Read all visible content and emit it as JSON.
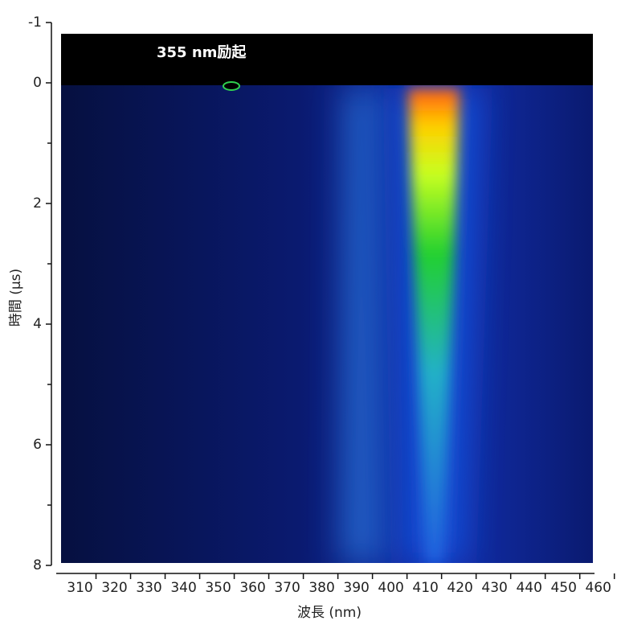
{
  "chart_data": {
    "type": "streak",
    "annotation": "355 nm励起",
    "xlabel": "波長 (nm)",
    "ylabel": "時間 (μs)",
    "xlim": [
      305,
      461
    ],
    "xticks": [
      310,
      320,
      330,
      340,
      350,
      360,
      370,
      380,
      390,
      400,
      410,
      420,
      430,
      440,
      450,
      460
    ],
    "ylim": [
      -1,
      8
    ],
    "yticks": [
      -1,
      0,
      2,
      4,
      6,
      8
    ],
    "yminorticks": [
      1,
      3,
      5,
      7
    ]
  }
}
